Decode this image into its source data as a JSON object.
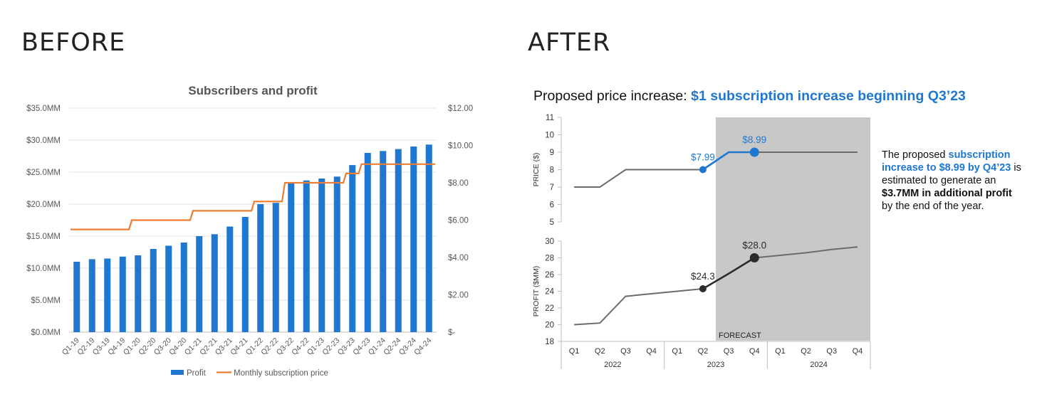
{
  "headings": {
    "before": "BEFORE",
    "after": "AFTER"
  },
  "chart_data": [
    {
      "type": "bar",
      "title": "Subscribers and profit",
      "categories": [
        "Q1-19",
        "Q2-19",
        "Q3-19",
        "Q4-19",
        "Q1-20",
        "Q2-20",
        "Q3-20",
        "Q4-20",
        "Q1-21",
        "Q2-21",
        "Q3-21",
        "Q4-21",
        "Q1-22",
        "Q2-22",
        "Q3-22",
        "Q4-22",
        "Q1-23",
        "Q2-23",
        "Q3-23",
        "Q4-23",
        "Q1-24",
        "Q2-24",
        "Q3-24",
        "Q4-24"
      ],
      "series": [
        {
          "name": "Profit",
          "kind": "bar",
          "axis": "left",
          "color": "#1f77d0",
          "values": [
            11.0,
            11.4,
            11.5,
            11.8,
            12.0,
            13.0,
            13.5,
            14.0,
            15.0,
            15.3,
            16.5,
            18.0,
            20.0,
            20.2,
            23.4,
            23.7,
            24.0,
            24.3,
            26.1,
            28.0,
            28.3,
            28.6,
            29.0,
            29.3
          ]
        },
        {
          "name": "Monthly subscription price",
          "kind": "line",
          "axis": "right",
          "color": "#ed7d31",
          "values": [
            5.5,
            5.5,
            5.5,
            5.5,
            6.0,
            6.0,
            6.0,
            6.0,
            6.5,
            6.5,
            6.5,
            6.5,
            7.0,
            7.0,
            8.0,
            8.0,
            8.0,
            8.0,
            8.5,
            9.0,
            9.0,
            9.0,
            9.0,
            9.0
          ]
        }
      ],
      "ylim": [
        0,
        35
      ],
      "y_ticks": [
        0,
        5,
        10,
        15,
        20,
        25,
        30,
        35
      ],
      "y_tick_labels": [
        "$0.0MM",
        "$5.0MM",
        "$10.0MM",
        "$15.0MM",
        "$20.0MM",
        "$25.0MM",
        "$30.0MM",
        "$35.0MM"
      ],
      "y2lim": [
        0,
        12
      ],
      "y2_ticks": [
        0,
        2,
        4,
        6,
        8,
        10,
        12
      ],
      "y2_tick_labels": [
        "$-",
        "$2.00",
        "$4.00",
        "$6.00",
        "$8.00",
        "$10.00",
        "$12.00"
      ],
      "legend": [
        "Profit",
        "Monthly subscription price"
      ],
      "legend_position": "bottom",
      "grid": true
    },
    {
      "type": "line",
      "title_plain": "Proposed price increase: ",
      "title_highlight": "$1 subscription increase beginning Q3’23",
      "quarters": [
        "Q1",
        "Q2",
        "Q3",
        "Q4",
        "Q1",
        "Q2",
        "Q3",
        "Q4",
        "Q1",
        "Q2",
        "Q3",
        "Q4"
      ],
      "years": [
        "2022",
        "2023",
        "2024"
      ],
      "forecast_label": "FORECAST",
      "forecast_start_index": 6,
      "price": {
        "ylabel": "PRICE ($)",
        "ylim": [
          5,
          11
        ],
        "y_ticks": [
          5,
          6,
          7,
          8,
          9,
          10,
          11
        ],
        "values": [
          7,
          7,
          8,
          8,
          8,
          8,
          9,
          9,
          9,
          9,
          9,
          9
        ],
        "highlight_from": 5,
        "highlight_to": 7,
        "labels": [
          {
            "index": 5,
            "text": "$7.99"
          },
          {
            "index": 7,
            "text": "$8.99"
          }
        ],
        "color": "#6b6b6b",
        "highlight_color": "#1f77d0"
      },
      "profit": {
        "ylabel": "PROFIT ($MM)",
        "ylim": [
          18,
          30
        ],
        "y_ticks": [
          18,
          20,
          22,
          24,
          26,
          28,
          30
        ],
        "values": [
          20.0,
          20.2,
          23.4,
          23.7,
          24.0,
          24.3,
          26.1,
          28.0,
          28.3,
          28.6,
          29.0,
          29.3
        ],
        "highlight_from": 5,
        "highlight_to": 7,
        "labels": [
          {
            "index": 5,
            "text": "$24.3"
          },
          {
            "index": 7,
            "text": "$28.0"
          }
        ],
        "color": "#6b6b6b",
        "highlight_color": "#2b2b2b"
      }
    }
  ],
  "callout": {
    "part1": "The proposed ",
    "part2": "subscription increase to $8.99 by Q4’23",
    "part3": " is estimated to generate an ",
    "part4": "$3.7MM in additional profit",
    "part5": " by the end of the year."
  }
}
